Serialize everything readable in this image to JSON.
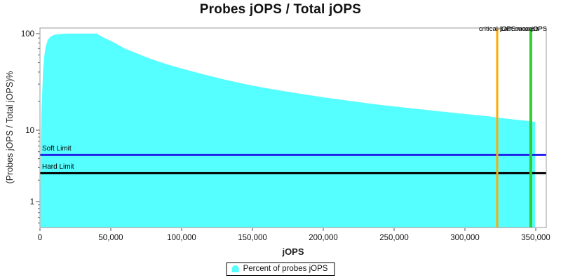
{
  "chart_data": {
    "type": "area",
    "title": "Probes jOPS / Total jOPS",
    "xlabel": "jOPS",
    "ylabel": "(Probes jOPS / Total jOPS)%",
    "x_axis": {
      "min": 0,
      "max": 357000,
      "tick_values": [
        0,
        50000,
        100000,
        150000,
        200000,
        250000,
        300000,
        350000
      ],
      "tick_labels": [
        "0",
        "50,000",
        "100,000",
        "150,000",
        "200,000",
        "250,000",
        "300,000",
        "350,000"
      ]
    },
    "y_axis": {
      "scale": "log",
      "min": 0.45,
      "max": 110,
      "tick_values": [
        100,
        10,
        1
      ],
      "tick_labels": [
        "100",
        "10",
        "1"
      ],
      "minor_ticks": [
        90,
        80,
        70,
        60,
        50,
        40,
        30,
        20,
        9,
        8,
        7,
        6,
        5,
        4,
        3,
        2,
        0.9,
        0.8,
        0.7,
        0.6,
        0.5
      ]
    },
    "series": [
      {
        "name": "Percent of probes jOPS",
        "color": "#55ffff",
        "points": [
          [
            400,
            2
          ],
          [
            700,
            8
          ],
          [
            1000,
            15
          ],
          [
            1600,
            25
          ],
          [
            2200,
            40
          ],
          [
            3000,
            58
          ],
          [
            4000,
            73
          ],
          [
            5500,
            86
          ],
          [
            7500,
            93
          ],
          [
            10000,
            97
          ],
          [
            14000,
            99
          ],
          [
            20000,
            100
          ],
          [
            40000,
            100
          ],
          [
            45000,
            91
          ],
          [
            50000,
            84
          ],
          [
            60000,
            70
          ],
          [
            70000,
            61
          ],
          [
            80000,
            53.5
          ],
          [
            90000,
            48
          ],
          [
            100000,
            43.5
          ],
          [
            115000,
            38
          ],
          [
            130000,
            33.5
          ],
          [
            145000,
            30
          ],
          [
            160000,
            27.2
          ],
          [
            180000,
            24.3
          ],
          [
            200000,
            21.9
          ],
          [
            220000,
            20
          ],
          [
            240000,
            18.3
          ],
          [
            260000,
            17
          ],
          [
            280000,
            15.8
          ],
          [
            300000,
            14.7
          ],
          [
            315000,
            14
          ],
          [
            325000,
            13.4
          ],
          [
            335000,
            12.9
          ],
          [
            342000,
            12.6
          ],
          [
            349500,
            12.2
          ]
        ]
      }
    ],
    "markers": {
      "soft_limit": {
        "label": "Soft Limit",
        "pct": 4.5,
        "color": "#2222ee"
      },
      "hard_limit": {
        "label": "Hard Limit",
        "pct": 2.5,
        "color": "#000000"
      },
      "critical_jops": {
        "label": "critical-jOPS",
        "jops": 322800,
        "color": "#ffaa00"
      },
      "last_success": {
        "label": "Last success",
        "jops": 346500,
        "color": "#33cc33"
      },
      "max_jops": {
        "label": "max-jOPS",
        "jops": 346500,
        "color": "#33cc33"
      }
    },
    "legend": {
      "position": "bottom",
      "entries": [
        {
          "label": "Percent of probes jOPS",
          "color": "#55ffff"
        }
      ]
    }
  }
}
